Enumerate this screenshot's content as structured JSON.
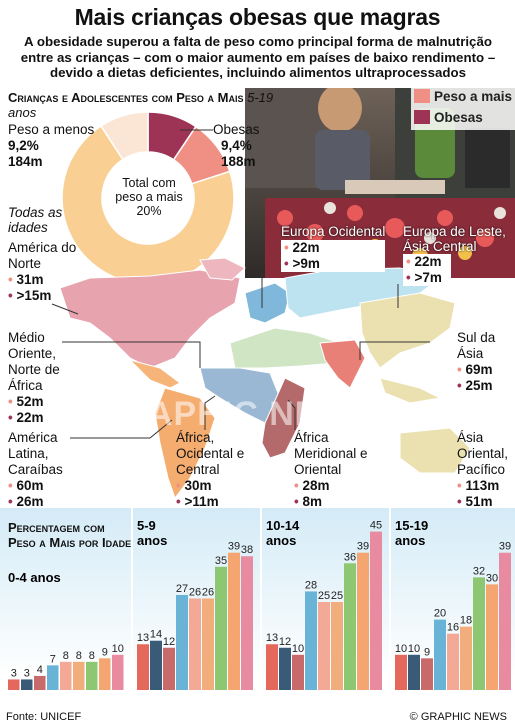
{
  "header": {
    "title": "Mais crianças obesas que magras",
    "subtitle": "A obesidade superou a falta de peso como principal forma de malnutrição entre as crianças – com o maior aumento em países de baixo rendimento – devido a dietas deficientes, incluindo alimentos ultraprocessados"
  },
  "donut": {
    "heading": "Crianças e Adolescentes com Peso a Mais",
    "age_range": "5-19 anos",
    "underweight_label": "Peso a menos",
    "underweight_pct": "9,2%",
    "underweight_count": "184m",
    "obese_label": "Obesas",
    "obese_pct": "9,4%",
    "obese_count": "188m",
    "center_label": "Total com peso a mais",
    "center_pct": "20%",
    "all_ages_label": "Todas as idades"
  },
  "legend": {
    "overweight": "Peso a mais",
    "obese": "Obesas"
  },
  "regions": [
    {
      "name": "América do Norte",
      "overweight": "31m",
      "obese": ">15m"
    },
    {
      "name": "Europa Ocidental",
      "overweight": "22m",
      "obese": ">9m"
    },
    {
      "name": "Europa de Leste, Ásia Central",
      "overweight": "22m",
      "obese": ">7m"
    },
    {
      "name": "Médio Oriente, Norte de África",
      "overweight": "52m",
      "obese": "22m"
    },
    {
      "name": "Sul da Ásia",
      "overweight": "69m",
      "obese": "25m"
    },
    {
      "name": "América Latina, Caraíbas",
      "overweight": "60m",
      "obese": "26m"
    },
    {
      "name": "África, Ocidental e Central",
      "overweight": "30m",
      "obese": ">11m"
    },
    {
      "name": "África Meridional e Oriental",
      "overweight": "28m",
      "obese": "8m"
    },
    {
      "name": "Ásia Oriental, Pacífico",
      "overweight": "113m",
      "obese": "51m"
    }
  ],
  "bars_heading": "Percentagem com Peso a Mais por Idade",
  "watermark": "GRAPHIC NEWS",
  "footer": {
    "source": "Fonte: UNICEF",
    "credit": "© GRAPHIC NEWS"
  },
  "colors": {
    "overweight": "#f08f83",
    "obese": "#9e3455",
    "underweight": "#fbe6d6",
    "rest": "#f9cf93"
  },
  "chart_data": [
    {
      "type": "pie",
      "title": "Crianças e Adolescentes com Peso a Mais",
      "subtitle": "5-19 anos",
      "slices": [
        {
          "label": "Obesas",
          "value": 9.4
        },
        {
          "label": "Peso a mais",
          "value": 10.6
        },
        {
          "label": "",
          "value": 70.8
        },
        {
          "label": "Peso a menos",
          "value": 9.2
        }
      ]
    },
    {
      "type": "bar",
      "title": "Percentagem com Peso a Mais por Idade",
      "ylim": [
        0,
        45
      ],
      "panels": [
        {
          "label": "0-4 anos",
          "values": [
            3,
            3,
            4,
            7,
            8,
            8,
            8,
            9,
            10
          ]
        },
        {
          "label": "5-9 anos",
          "values": [
            13,
            14,
            12,
            27,
            26,
            26,
            35,
            39,
            38
          ]
        },
        {
          "label": "10-14 anos",
          "values": [
            13,
            12,
            10,
            28,
            25,
            25,
            36,
            39,
            45
          ]
        },
        {
          "label": "15-19 anos",
          "values": [
            10,
            10,
            9,
            20,
            16,
            18,
            32,
            30,
            39
          ]
        }
      ],
      "bar_colors": [
        "#e4685b",
        "#3a5b78",
        "#c96a6a",
        "#68b3d6",
        "#f4a896",
        "#f2ad7d",
        "#8dc772",
        "#f5a56f",
        "#e88aa0"
      ]
    }
  ]
}
